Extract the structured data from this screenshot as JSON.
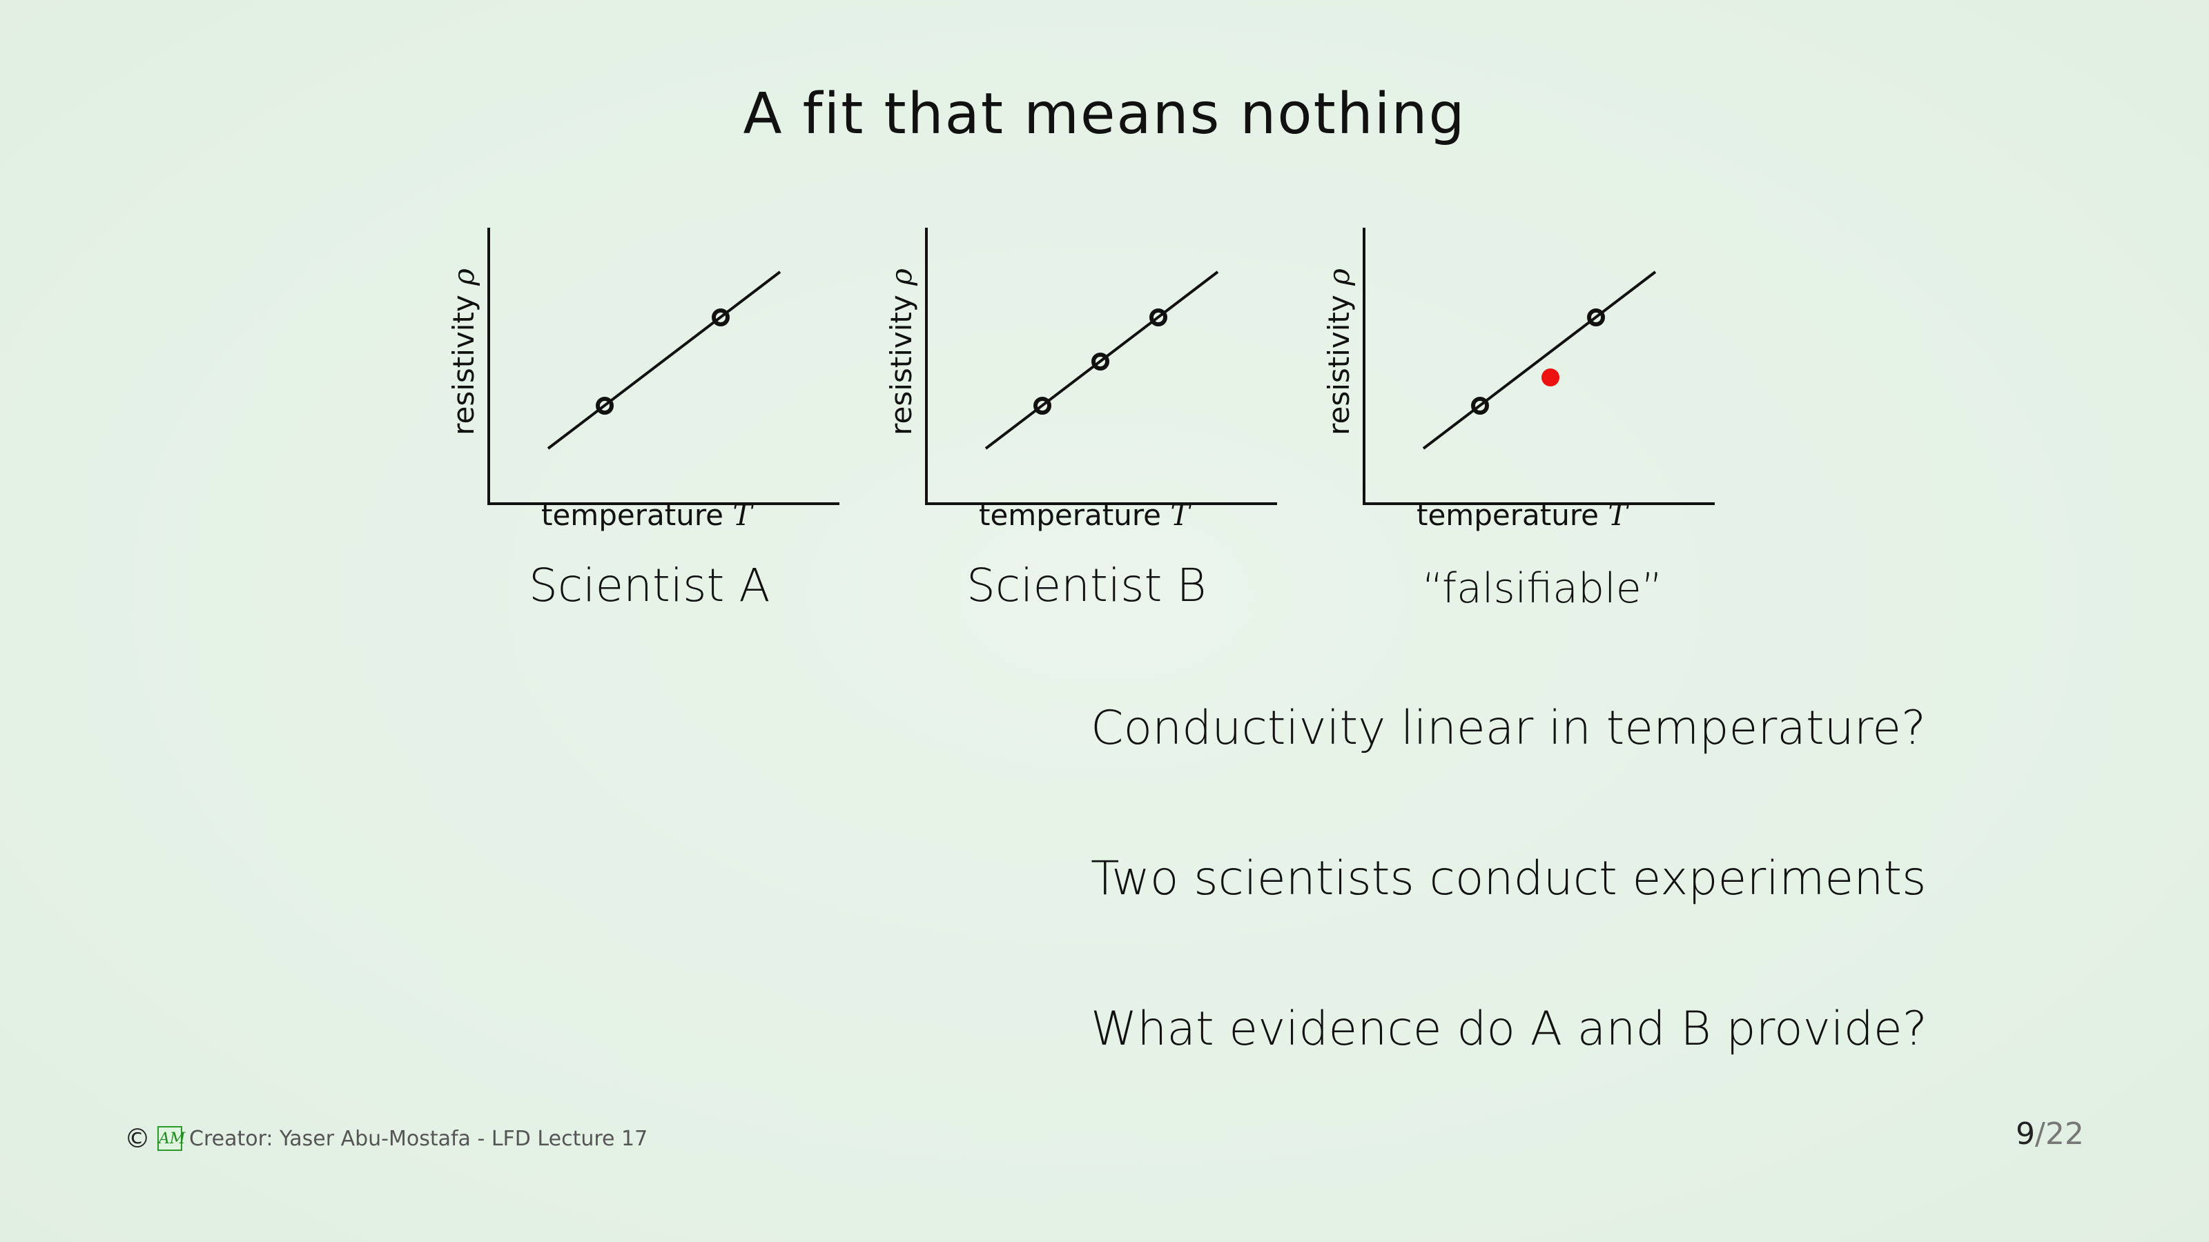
{
  "slide": {
    "title": "A fit that means nothing",
    "plots": [
      {
        "ylabel_text": "resistivity",
        "ylabel_symbol": "ρ",
        "xlabel_text": "temperature",
        "xlabel_symbol": "T",
        "caption": "Scientist A"
      },
      {
        "ylabel_text": "resistivity",
        "ylabel_symbol": "ρ",
        "xlabel_text": "temperature",
        "xlabel_symbol": "T",
        "caption": "Scientist B"
      },
      {
        "ylabel_text": "resistivity",
        "ylabel_symbol": "ρ",
        "xlabel_text": "temperature",
        "xlabel_symbol": "T",
        "caption": "“falsifiable”"
      }
    ],
    "bullets": [
      "Conductivity linear in temperature?",
      "Two scientists conduct experiments",
      "What evidence do A and B provide?"
    ]
  },
  "footer": {
    "copyright_symbol": "©",
    "logo_text": "AM",
    "credit": "Creator: Yaser Abu-Mostafa - LFD Lecture 17",
    "page_current": "9",
    "page_separator": "/",
    "page_total": "22"
  },
  "colors": {
    "red_point": "#ee1111",
    "line": "#111111"
  }
}
